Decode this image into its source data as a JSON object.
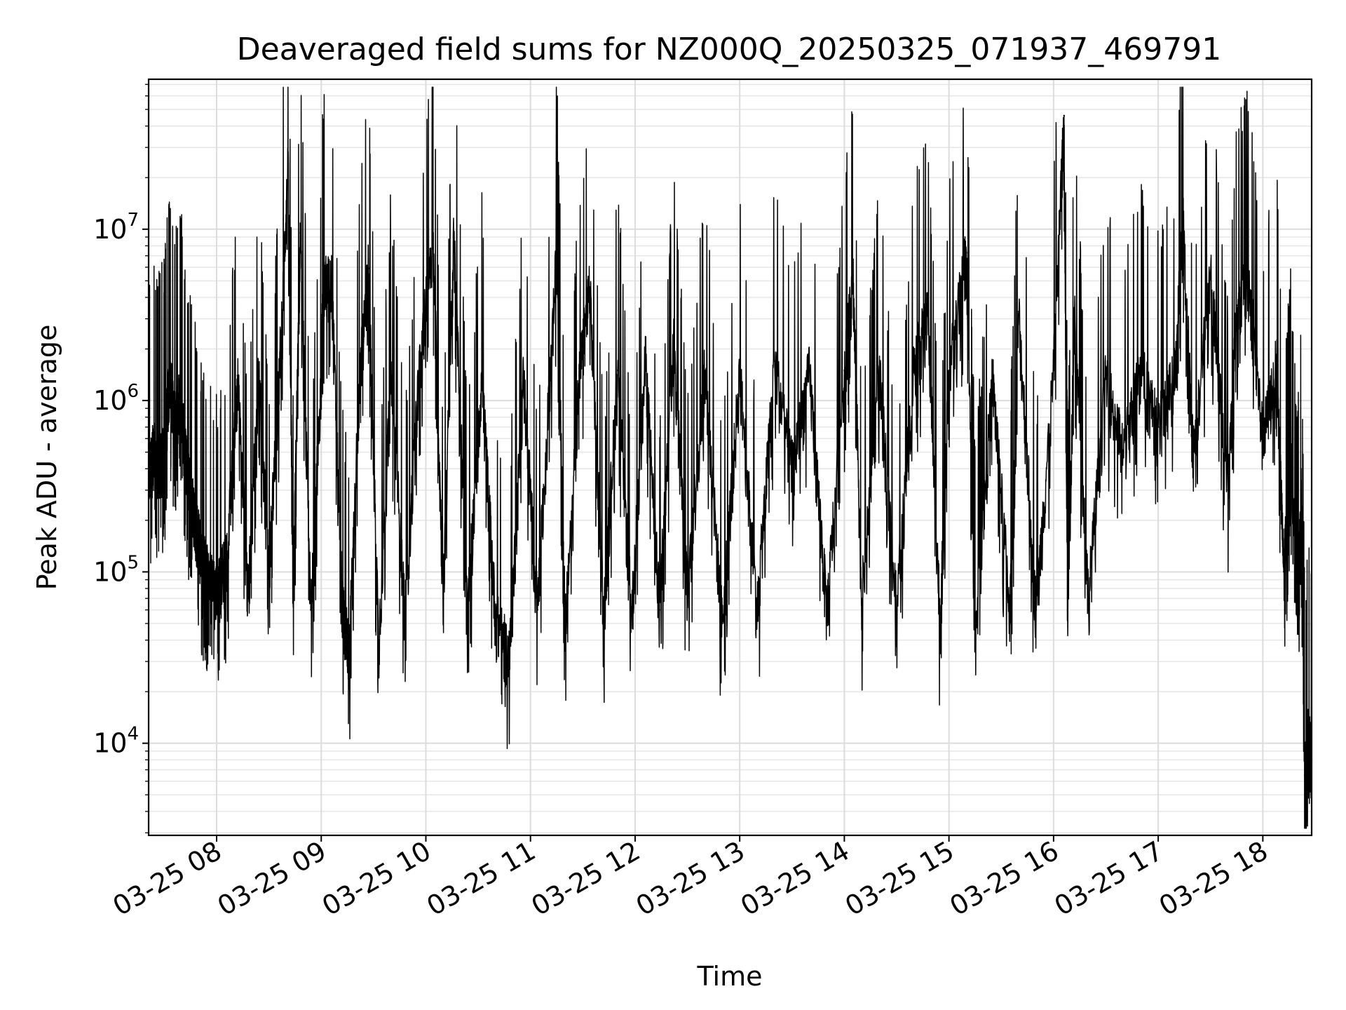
{
  "chart_data": {
    "type": "line",
    "title": "Deaveraged field sums for NZ000Q_20250325_071937_469791",
    "xlabel": "Time",
    "ylabel": "Peak ADU - average",
    "yscale": "log",
    "ylim": [
      2900,
      75000000
    ],
    "xlim": [
      "2025-03-25 07:21",
      "2025-03-25 18:28"
    ],
    "grid": "on (major and minor)",
    "x_ticks": [
      {
        "t": "2025-03-25 08:00",
        "label": "03-25 08"
      },
      {
        "t": "2025-03-25 09:00",
        "label": "03-25 09"
      },
      {
        "t": "2025-03-25 10:00",
        "label": "03-25 10"
      },
      {
        "t": "2025-03-25 11:00",
        "label": "03-25 11"
      },
      {
        "t": "2025-03-25 12:00",
        "label": "03-25 12"
      },
      {
        "t": "2025-03-25 13:00",
        "label": "03-25 13"
      },
      {
        "t": "2025-03-25 14:00",
        "label": "03-25 14"
      },
      {
        "t": "2025-03-25 15:00",
        "label": "03-25 15"
      },
      {
        "t": "2025-03-25 16:00",
        "label": "03-25 16"
      },
      {
        "t": "2025-03-25 17:00",
        "label": "03-25 17"
      },
      {
        "t": "2025-03-25 18:00",
        "label": "03-25 18"
      }
    ],
    "y_ticks": [
      {
        "value": 10000,
        "base": "10",
        "exp": "4"
      },
      {
        "value": 100000,
        "base": "10",
        "exp": "5"
      },
      {
        "value": 1000000,
        "base": "10",
        "exp": "6"
      },
      {
        "value": 10000000,
        "base": "10",
        "exp": "7"
      }
    ],
    "series": [
      {
        "color": "#000000",
        "points": [
          [
            "2025-03-25 07:21",
            350000
          ],
          [
            "2025-03-25 07:24",
            550000
          ],
          [
            "2025-03-25 07:27",
            420000
          ],
          [
            "2025-03-25 07:30",
            500000
          ],
          [
            "2025-03-25 07:33",
            1500000
          ],
          [
            "2025-03-25 07:36",
            700000
          ],
          [
            "2025-03-25 07:39",
            1200000
          ],
          [
            "2025-03-25 07:42",
            500000
          ],
          [
            "2025-03-25 07:45",
            300000
          ],
          [
            "2025-03-25 07:48",
            200000
          ],
          [
            "2025-03-25 07:52",
            120000
          ],
          [
            "2025-03-25 07:56",
            90000
          ],
          [
            "2025-03-25 08:00",
            80000
          ],
          [
            "2025-03-25 08:06",
            120000
          ],
          [
            "2025-03-25 08:12",
            1400000
          ],
          [
            "2025-03-25 08:18",
            70000
          ],
          [
            "2025-03-25 08:24",
            1500000
          ],
          [
            "2025-03-25 08:30",
            100000
          ],
          [
            "2025-03-25 08:36",
            1500000
          ],
          [
            "2025-03-25 08:41",
            24000000
          ],
          [
            "2025-03-25 08:44",
            80000
          ],
          [
            "2025-03-25 08:48",
            9500000
          ],
          [
            "2025-03-25 08:54",
            60000
          ],
          [
            "2025-03-25 09:00",
            1400000
          ],
          [
            "2025-03-25 09:01",
            4800000
          ],
          [
            "2025-03-25 09:06",
            5000000
          ],
          [
            "2025-03-25 09:12",
            70000
          ],
          [
            "2025-03-25 09:16",
            33000
          ],
          [
            "2025-03-25 09:22",
            1400000
          ],
          [
            "2025-03-25 09:27",
            5900000
          ],
          [
            "2025-03-25 09:33",
            40000
          ],
          [
            "2025-03-25 09:40",
            1400000
          ],
          [
            "2025-03-25 09:48",
            60000
          ],
          [
            "2025-03-25 09:56",
            1400000
          ],
          [
            "2025-03-25 10:04",
            9500000
          ],
          [
            "2025-03-25 10:10",
            70000
          ],
          [
            "2025-03-25 10:16",
            9000000
          ],
          [
            "2025-03-25 10:24",
            60000
          ],
          [
            "2025-03-25 10:32",
            1400000
          ],
          [
            "2025-03-25 10:40",
            55000
          ],
          [
            "2025-03-25 10:48",
            32000
          ],
          [
            "2025-03-25 10:56",
            1400000
          ],
          [
            "2025-03-25 11:04",
            60000
          ],
          [
            "2025-03-25 11:15",
            7200000
          ],
          [
            "2025-03-25 11:20",
            50000
          ],
          [
            "2025-03-25 11:28",
            1400000
          ],
          [
            "2025-03-25 11:34",
            4600000
          ],
          [
            "2025-03-25 11:42",
            60000
          ],
          [
            "2025-03-25 11:50",
            1500000
          ],
          [
            "2025-03-25 11:58",
            55000
          ],
          [
            "2025-03-25 12:06",
            1800000
          ],
          [
            "2025-03-25 12:14",
            60000
          ],
          [
            "2025-03-25 12:22",
            2200000
          ],
          [
            "2025-03-25 12:30",
            80000
          ],
          [
            "2025-03-25 12:40",
            1500000
          ],
          [
            "2025-03-25 12:50",
            50000
          ],
          [
            "2025-03-25 13:00",
            1500000
          ],
          [
            "2025-03-25 13:10",
            60000
          ],
          [
            "2025-03-25 13:20",
            1700000
          ],
          [
            "2025-03-25 13:30",
            400000
          ],
          [
            "2025-03-25 13:40",
            1500000
          ],
          [
            "2025-03-25 13:50",
            60000
          ],
          [
            "2025-03-25 14:00",
            1500000
          ],
          [
            "2025-03-25 14:05",
            5400000
          ],
          [
            "2025-03-25 14:10",
            70000
          ],
          [
            "2025-03-25 14:20",
            1500000
          ],
          [
            "2025-03-25 14:30",
            60000
          ],
          [
            "2025-03-25 14:40",
            1700000
          ],
          [
            "2025-03-25 14:48",
            3100000
          ],
          [
            "2025-03-25 14:55",
            50000
          ],
          [
            "2025-03-25 15:00",
            1500000
          ],
          [
            "2025-03-25 15:10",
            7300000
          ],
          [
            "2025-03-25 15:15",
            40000
          ],
          [
            "2025-03-25 15:25",
            1400000
          ],
          [
            "2025-03-25 15:35",
            60000
          ],
          [
            "2025-03-25 15:40",
            3300000
          ],
          [
            "2025-03-25 15:50",
            60000
          ],
          [
            "2025-03-25 16:00",
            1500000
          ],
          [
            "2025-03-25 16:06",
            46000000
          ],
          [
            "2025-03-25 16:08",
            60000
          ],
          [
            "2025-03-25 16:12",
            3000000
          ],
          [
            "2025-03-25 16:20",
            70000
          ],
          [
            "2025-03-25 16:30",
            1400000
          ],
          [
            "2025-03-25 16:40",
            500000
          ],
          [
            "2025-03-25 16:50",
            1600000
          ],
          [
            "2025-03-25 17:00",
            700000
          ],
          [
            "2025-03-25 17:10",
            1500000
          ],
          [
            "2025-03-25 17:14",
            13500000
          ],
          [
            "2025-03-25 17:20",
            500000
          ],
          [
            "2025-03-25 17:30",
            5500000
          ],
          [
            "2025-03-25 17:40",
            300000
          ],
          [
            "2025-03-25 17:45",
            3600000
          ],
          [
            "2025-03-25 17:52",
            5000000
          ],
          [
            "2025-03-25 18:00",
            600000
          ],
          [
            "2025-03-25 18:08",
            1700000
          ],
          [
            "2025-03-25 18:12",
            100000
          ],
          [
            "2025-03-25 18:16",
            500000
          ],
          [
            "2025-03-25 18:20",
            60000
          ],
          [
            "2025-03-25 18:22",
            300000
          ],
          [
            "2025-03-25 18:24",
            6500
          ],
          [
            "2025-03-25 18:26",
            12000
          ],
          [
            "2025-03-25 18:28",
            8000
          ]
        ]
      }
    ]
  }
}
